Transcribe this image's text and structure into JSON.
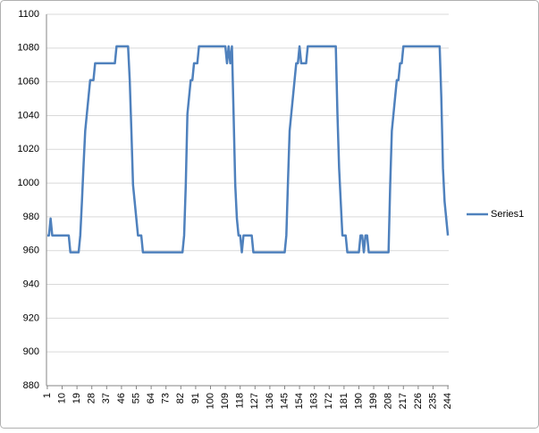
{
  "chart_data": {
    "type": "line",
    "x": [
      1,
      2,
      3,
      4,
      5,
      6,
      7,
      8,
      9,
      10,
      11,
      12,
      13,
      14,
      15,
      16,
      17,
      18,
      19,
      20,
      21,
      22,
      23,
      24,
      25,
      26,
      27,
      28,
      29,
      30,
      31,
      32,
      33,
      34,
      35,
      36,
      37,
      38,
      39,
      40,
      41,
      42,
      43,
      44,
      45,
      46,
      47,
      48,
      49,
      50,
      51,
      52,
      53,
      54,
      55,
      56,
      57,
      58,
      59,
      60,
      61,
      62,
      63,
      64,
      65,
      66,
      67,
      68,
      69,
      70,
      71,
      72,
      73,
      74,
      75,
      76,
      77,
      78,
      79,
      80,
      81,
      82,
      83,
      84,
      85,
      86,
      87,
      88,
      89,
      90,
      91,
      92,
      93,
      94,
      95,
      96,
      97,
      98,
      99,
      100,
      101,
      102,
      103,
      104,
      105,
      106,
      107,
      108,
      109,
      110,
      111,
      112,
      113,
      114,
      115,
      116,
      117,
      118,
      119,
      120,
      121,
      122,
      123,
      124,
      125,
      126,
      127,
      128,
      129,
      130,
      131,
      132,
      133,
      134,
      135,
      136,
      137,
      138,
      139,
      140,
      141,
      142,
      143,
      144,
      145,
      146,
      147,
      148,
      149,
      150,
      151,
      152,
      153,
      154,
      155,
      156,
      157,
      158,
      159,
      160,
      161,
      162,
      163,
      164,
      165,
      166,
      167,
      168,
      169,
      170,
      171,
      172,
      173,
      174,
      175,
      176,
      177,
      178,
      179,
      180,
      181,
      182,
      183,
      184,
      185,
      186,
      187,
      188,
      189,
      190,
      191,
      192,
      193,
      194,
      195,
      196,
      197,
      198,
      199,
      200,
      201,
      202,
      203,
      204,
      205,
      206,
      207,
      208,
      209,
      210,
      211,
      212,
      213,
      214,
      215,
      216,
      217,
      218,
      219,
      220,
      221,
      222,
      223,
      224,
      225,
      226,
      227,
      228,
      229,
      230,
      231,
      232,
      233,
      234,
      235,
      236,
      237,
      238,
      239,
      240,
      241,
      242,
      243,
      244
    ],
    "series": [
      {
        "name": "Series1",
        "color": "#4f81bd",
        "values": [
          969,
          969,
          979,
          969,
          969,
          969,
          969,
          969,
          969,
          969,
          969,
          969,
          969,
          969,
          959,
          959,
          959,
          959,
          959,
          959,
          969,
          989,
          1011,
          1031,
          1041,
          1051,
          1061,
          1061,
          1061,
          1071,
          1071,
          1071,
          1071,
          1071,
          1071,
          1071,
          1071,
          1071,
          1071,
          1071,
          1071,
          1071,
          1081,
          1081,
          1081,
          1081,
          1081,
          1081,
          1081,
          1081,
          1061,
          1031,
          999,
          989,
          979,
          969,
          969,
          969,
          959,
          959,
          959,
          959,
          959,
          959,
          959,
          959,
          959,
          959,
          959,
          959,
          959,
          959,
          959,
          959,
          959,
          959,
          959,
          959,
          959,
          959,
          959,
          959,
          959,
          969,
          999,
          1041,
          1051,
          1061,
          1061,
          1071,
          1071,
          1071,
          1081,
          1081,
          1081,
          1081,
          1081,
          1081,
          1081,
          1081,
          1081,
          1081,
          1081,
          1081,
          1081,
          1081,
          1081,
          1081,
          1081,
          1071,
          1081,
          1071,
          1081,
          1041,
          999,
          979,
          969,
          969,
          959,
          969,
          969,
          969,
          969,
          969,
          969,
          959,
          959,
          959,
          959,
          959,
          959,
          959,
          959,
          959,
          959,
          959,
          959,
          959,
          959,
          959,
          959,
          959,
          959,
          959,
          959,
          969,
          1001,
          1031,
          1041,
          1051,
          1061,
          1071,
          1071,
          1081,
          1071,
          1071,
          1071,
          1071,
          1081,
          1081,
          1081,
          1081,
          1081,
          1081,
          1081,
          1081,
          1081,
          1081,
          1081,
          1081,
          1081,
          1081,
          1081,
          1081,
          1081,
          1081,
          1041,
          1009,
          989,
          969,
          969,
          969,
          959,
          959,
          959,
          959,
          959,
          959,
          959,
          959,
          969,
          969,
          959,
          969,
          969,
          959,
          959,
          959,
          959,
          959,
          959,
          959,
          959,
          959,
          959,
          959,
          959,
          959,
          999,
          1031,
          1041,
          1051,
          1061,
          1061,
          1071,
          1071,
          1081,
          1081,
          1081,
          1081,
          1081,
          1081,
          1081,
          1081,
          1081,
          1081,
          1081,
          1081,
          1081,
          1081,
          1081,
          1081,
          1081,
          1081,
          1081,
          1081,
          1081,
          1081,
          1081,
          1051,
          1009,
          989,
          979,
          969
        ]
      }
    ],
    "xlim": [
      0.5,
      244.5
    ],
    "xticks": [
      1,
      10,
      19,
      28,
      37,
      46,
      55,
      64,
      73,
      82,
      91,
      100,
      109,
      118,
      127,
      136,
      145,
      154,
      163,
      172,
      181,
      190,
      199,
      208,
      217,
      226,
      235,
      244
    ],
    "ylim": [
      880,
      1100
    ],
    "yticks": [
      880,
      900,
      920,
      940,
      960,
      980,
      1000,
      1020,
      1040,
      1060,
      1080,
      1100
    ],
    "grid": true,
    "legend": "right"
  }
}
